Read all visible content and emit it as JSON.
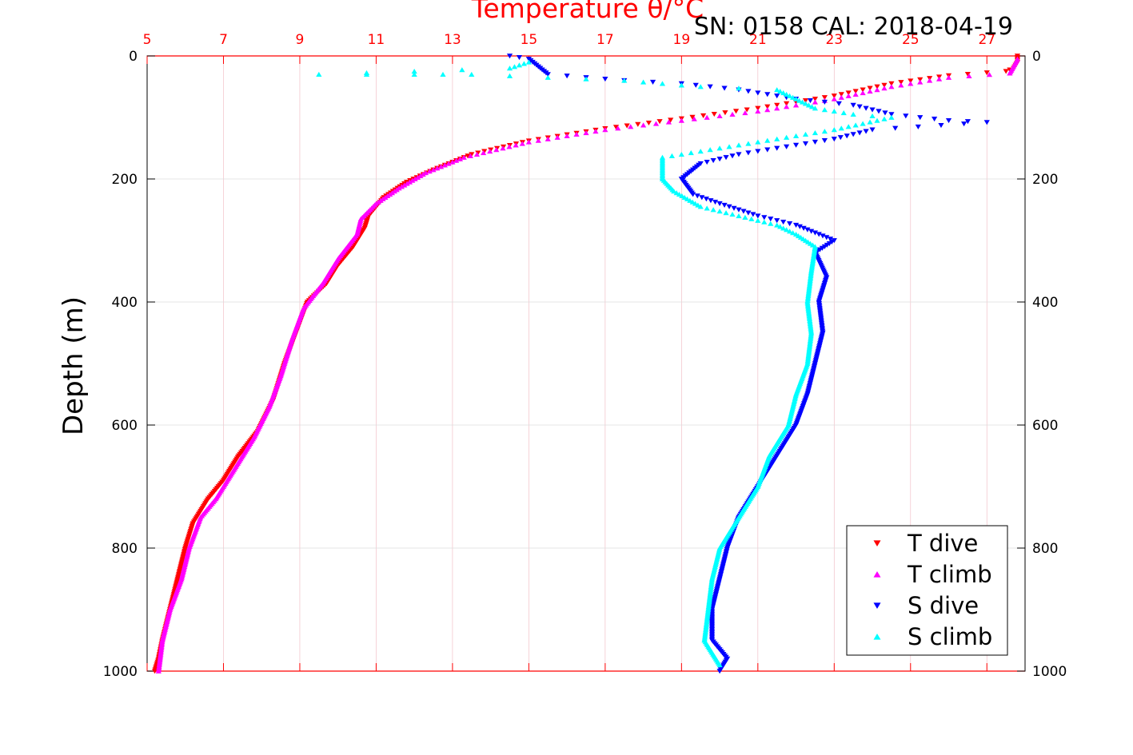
{
  "chart_data": {
    "type": "scatter",
    "title": "Temperature θ/°C",
    "annotation": "SN: 0158  CAL: 2018-04-19",
    "xlabel": "Temperature θ/°C",
    "ylabel": "Depth (m)",
    "xlim": [
      5,
      28.0
    ],
    "ylim": [
      1000,
      0
    ],
    "y_reversed": true,
    "grid": true,
    "x_axis_position": "top",
    "x_axis_color": "#ff0000",
    "x_ticks": [
      5,
      7,
      9,
      11,
      13,
      15,
      17,
      19,
      21,
      23,
      25,
      27
    ],
    "y_ticks": [
      0,
      200,
      400,
      600,
      800,
      1000
    ],
    "legend_position": "bottom-right",
    "series": [
      {
        "name": "T dive",
        "marker": "triangle-down",
        "color": "#ff0000",
        "points": [
          [
            27.8,
            0
          ],
          [
            27.8,
            10
          ],
          [
            27.7,
            20
          ],
          [
            27.5,
            25
          ],
          [
            26.0,
            32
          ],
          [
            24.5,
            45
          ],
          [
            23.0,
            65
          ],
          [
            21.0,
            85
          ],
          [
            19.0,
            102
          ],
          [
            17.0,
            118
          ],
          [
            15.0,
            138
          ],
          [
            13.5,
            160
          ],
          [
            12.5,
            185
          ],
          [
            11.8,
            205
          ],
          [
            11.2,
            230
          ],
          [
            10.8,
            260
          ],
          [
            10.7,
            280
          ],
          [
            10.4,
            310
          ],
          [
            10.0,
            340
          ],
          [
            9.7,
            370
          ],
          [
            9.2,
            400
          ],
          [
            8.9,
            450
          ],
          [
            8.6,
            500
          ],
          [
            8.3,
            560
          ],
          [
            7.9,
            610
          ],
          [
            7.4,
            650
          ],
          [
            7.0,
            690
          ],
          [
            6.6,
            720
          ],
          [
            6.2,
            760
          ],
          [
            6.0,
            800
          ],
          [
            5.8,
            850
          ],
          [
            5.6,
            900
          ],
          [
            5.4,
            950
          ],
          [
            5.3,
            980
          ],
          [
            5.2,
            1000
          ]
        ]
      },
      {
        "name": "T climb",
        "marker": "triangle-up",
        "color": "#ff00ff",
        "points": [
          [
            27.8,
            5
          ],
          [
            27.6,
            28
          ],
          [
            26.0,
            35
          ],
          [
            24.5,
            50
          ],
          [
            23.0,
            70
          ],
          [
            21.0,
            90
          ],
          [
            19.0,
            105
          ],
          [
            17.0,
            120
          ],
          [
            15.0,
            140
          ],
          [
            13.3,
            165
          ],
          [
            12.3,
            190
          ],
          [
            11.6,
            215
          ],
          [
            11.0,
            240
          ],
          [
            10.6,
            265
          ],
          [
            10.5,
            290
          ],
          [
            10.0,
            330
          ],
          [
            9.6,
            370
          ],
          [
            9.1,
            410
          ],
          [
            8.8,
            460
          ],
          [
            8.5,
            520
          ],
          [
            8.2,
            570
          ],
          [
            7.8,
            620
          ],
          [
            7.4,
            660
          ],
          [
            7.1,
            690
          ],
          [
            6.8,
            720
          ],
          [
            6.4,
            750
          ],
          [
            6.1,
            800
          ],
          [
            5.9,
            850
          ],
          [
            5.6,
            900
          ],
          [
            5.4,
            950
          ],
          [
            5.3,
            1000
          ]
        ]
      },
      {
        "name": "S dive",
        "marker": "triangle-down",
        "color": "#0000ff",
        "points": [
          [
            14.5,
            0
          ],
          [
            15.0,
            5
          ],
          [
            15.5,
            30
          ],
          [
            17.5,
            40
          ],
          [
            19.0,
            45
          ],
          [
            20.5,
            55
          ],
          [
            22.0,
            70
          ],
          [
            23.5,
            80
          ],
          [
            24.5,
            95
          ],
          [
            26.0,
            105
          ],
          [
            27.0,
            108
          ],
          [
            24.0,
            120
          ],
          [
            23.0,
            135
          ],
          [
            21.5,
            150
          ],
          [
            20.5,
            160
          ],
          [
            19.5,
            175
          ],
          [
            19.0,
            200
          ],
          [
            19.3,
            225
          ],
          [
            20.0,
            240
          ],
          [
            21.0,
            260
          ],
          [
            22.0,
            275
          ],
          [
            23.0,
            300
          ],
          [
            22.5,
            320
          ],
          [
            22.8,
            360
          ],
          [
            22.6,
            400
          ],
          [
            22.7,
            450
          ],
          [
            22.5,
            500
          ],
          [
            22.3,
            550
          ],
          [
            22.0,
            600
          ],
          [
            21.5,
            650
          ],
          [
            21.0,
            700
          ],
          [
            20.5,
            750
          ],
          [
            20.2,
            800
          ],
          [
            20.0,
            850
          ],
          [
            19.8,
            900
          ],
          [
            19.8,
            950
          ],
          [
            20.2,
            980
          ],
          [
            20.0,
            1000
          ]
        ]
      },
      {
        "name": "S climb",
        "marker": "triangle-up",
        "color": "#00ffff",
        "points": [
          [
            15.0,
            10
          ],
          [
            14.5,
            20
          ],
          [
            9.5,
            30
          ],
          [
            12.0,
            30
          ],
          [
            13.5,
            30
          ],
          [
            17.5,
            40
          ],
          [
            19.5,
            50
          ],
          [
            21.5,
            55
          ],
          [
            22.0,
            70
          ],
          [
            22.5,
            85
          ],
          [
            23.5,
            95
          ],
          [
            24.5,
            100
          ],
          [
            23.0,
            120
          ],
          [
            21.5,
            135
          ],
          [
            20.0,
            150
          ],
          [
            18.5,
            165
          ],
          [
            18.5,
            180
          ],
          [
            18.5,
            200
          ],
          [
            18.8,
            220
          ],
          [
            19.5,
            245
          ],
          [
            20.5,
            260
          ],
          [
            21.5,
            275
          ],
          [
            22.0,
            290
          ],
          [
            22.5,
            310
          ],
          [
            22.4,
            350
          ],
          [
            22.3,
            400
          ],
          [
            22.4,
            450
          ],
          [
            22.3,
            500
          ],
          [
            22.0,
            550
          ],
          [
            21.8,
            600
          ],
          [
            21.3,
            650
          ],
          [
            21.0,
            700
          ],
          [
            20.5,
            750
          ],
          [
            20.0,
            800
          ],
          [
            19.8,
            850
          ],
          [
            19.7,
            900
          ],
          [
            19.6,
            950
          ],
          [
            20.0,
            990
          ]
        ]
      }
    ]
  }
}
